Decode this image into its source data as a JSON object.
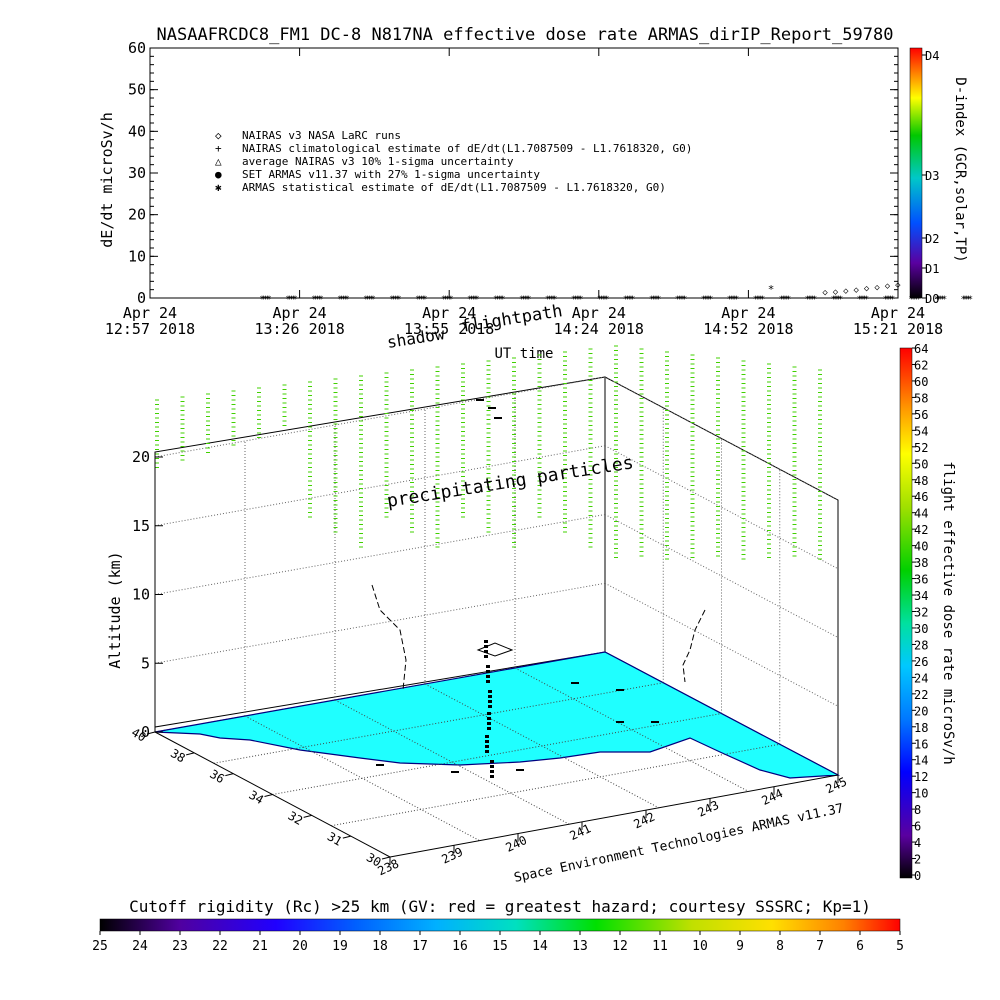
{
  "chart_data": [
    {
      "type": "scatter",
      "title": "NASAAFRCDC8_FM1 DC-8   N817NA effective dose rate ARMAS_dirIP_Report_59780",
      "xlabel": "UT time",
      "ylabel": "dE/dt microSv/h",
      "ylim": [
        0,
        60
      ],
      "yticks": [
        "0",
        "10",
        "20",
        "30",
        "40",
        "50",
        "60"
      ],
      "xticks": [
        {
          "line1": "Apr 24",
          "line2": "12:57 2018"
        },
        {
          "line1": "Apr 24",
          "line2": "13:26 2018"
        },
        {
          "line1": "Apr 24",
          "line2": "13:55 2018"
        },
        {
          "line1": "Apr 24",
          "line2": "14:24 2018"
        },
        {
          "line1": "Apr 24",
          "line2": "14:52 2018"
        },
        {
          "line1": "Apr 24",
          "line2": "15:21 2018"
        }
      ],
      "legend": [
        {
          "symbol": "◇",
          "label": "NAIRAS v3 NASA LaRC runs"
        },
        {
          "symbol": "+",
          "label": "NAIRAS climatological estimate of dE/dt(L1.7087509 - L1.7618320, G0)"
        },
        {
          "symbol": "△",
          "label": "average NAIRAS v3 10% 1-sigma uncertainty"
        },
        {
          "symbol": "●",
          "label": "SET ARMAS v11.37 with 27% 1-sigma uncertainty"
        },
        {
          "symbol": "✱",
          "label": "ARMAS statistical estimate of dE/dt(L1.7087509 - L1.7618320, G0)"
        }
      ],
      "series": [
        {
          "name": "ARMAS statistical estimate of dE/dt(L1.7087509 - L1.7618320, G0)",
          "x_minutes": [
            10,
            15,
            20,
            25,
            30,
            35,
            40,
            45,
            50,
            55,
            60,
            65,
            70,
            75,
            80,
            85,
            90,
            95,
            100,
            105,
            110,
            115,
            120,
            125,
            130,
            135,
            140,
            145
          ],
          "values": [
            0,
            0,
            0,
            0,
            0,
            0,
            0,
            0,
            0,
            0,
            0,
            0,
            0,
            0,
            0,
            0,
            0,
            0,
            0,
            0,
            0,
            0,
            0,
            0,
            0,
            0,
            0,
            0
          ]
        },
        {
          "name": "NAIRAS v3 NASA LaRC runs",
          "x_minutes": [
            129,
            131,
            133,
            135,
            137,
            139,
            141,
            143
          ],
          "values": [
            0.2,
            0.4,
            0.6,
            0.9,
            1.2,
            1.5,
            1.8,
            2.0
          ]
        }
      ],
      "colorbar": {
        "label": "D-index (GCR,solar,TP)",
        "ticks": [
          "D0",
          "D1",
          "D2",
          "D3",
          "D4"
        ],
        "colors": [
          "#000000",
          "#5a00a0",
          "#0050ff",
          "#00c8c8",
          "#00c800",
          "#ffff00",
          "#ff8000",
          "#ff0000"
        ]
      }
    },
    {
      "type": "scatter3d",
      "zlabel": "Altitude (km)",
      "zticks": [
        "0",
        "5",
        "10",
        "15",
        "20"
      ],
      "lat_ticks": [
        "30",
        "31",
        "32",
        "34",
        "36",
        "38",
        "40"
      ],
      "lon_ticks": [
        "238",
        "239",
        "240",
        "241",
        "242",
        "243",
        "244",
        "245"
      ],
      "annotations": [
        "shadow",
        "flightpath",
        "precipitating particles"
      ],
      "credit": "Space Environment Technologies ARMAS v11.37",
      "colorbar": {
        "label": "flight effective dose rate microSv/h",
        "ticks": [
          "0",
          "2",
          "4",
          "6",
          "8",
          "10",
          "12",
          "14",
          "16",
          "18",
          "20",
          "22",
          "24",
          "26",
          "28",
          "30",
          "32",
          "34",
          "36",
          "38",
          "40",
          "42",
          "44",
          "46",
          "48",
          "50",
          "52",
          "54",
          "56",
          "58",
          "60",
          "62",
          "64"
        ],
        "colors": [
          "#000000",
          "#5a00a0",
          "#0000ff",
          "#0078ff",
          "#00c8ff",
          "#00e0a0",
          "#00d000",
          "#a0e000",
          "#ffff00",
          "#ffa000",
          "#ff4000",
          "#ff0000"
        ]
      }
    },
    {
      "type": "heatmap",
      "title": "Cutoff rigidity (Rc) >25 km (GV: red = greatest hazard; courtesy SSSRC; Kp=1)",
      "ticks": [
        "25",
        "24",
        "23",
        "22",
        "21",
        "20",
        "19",
        "18",
        "17",
        "16",
        "15",
        "14",
        "13",
        "12",
        "11",
        "10",
        "9",
        "8",
        "7",
        "6",
        "5"
      ],
      "colors": [
        "#000000",
        "#5000a0",
        "#2000ff",
        "#0060ff",
        "#00b0ff",
        "#00e0c0",
        "#00e000",
        "#c0e000",
        "#ffe000",
        "#ff8000",
        "#ff0000"
      ]
    }
  ]
}
